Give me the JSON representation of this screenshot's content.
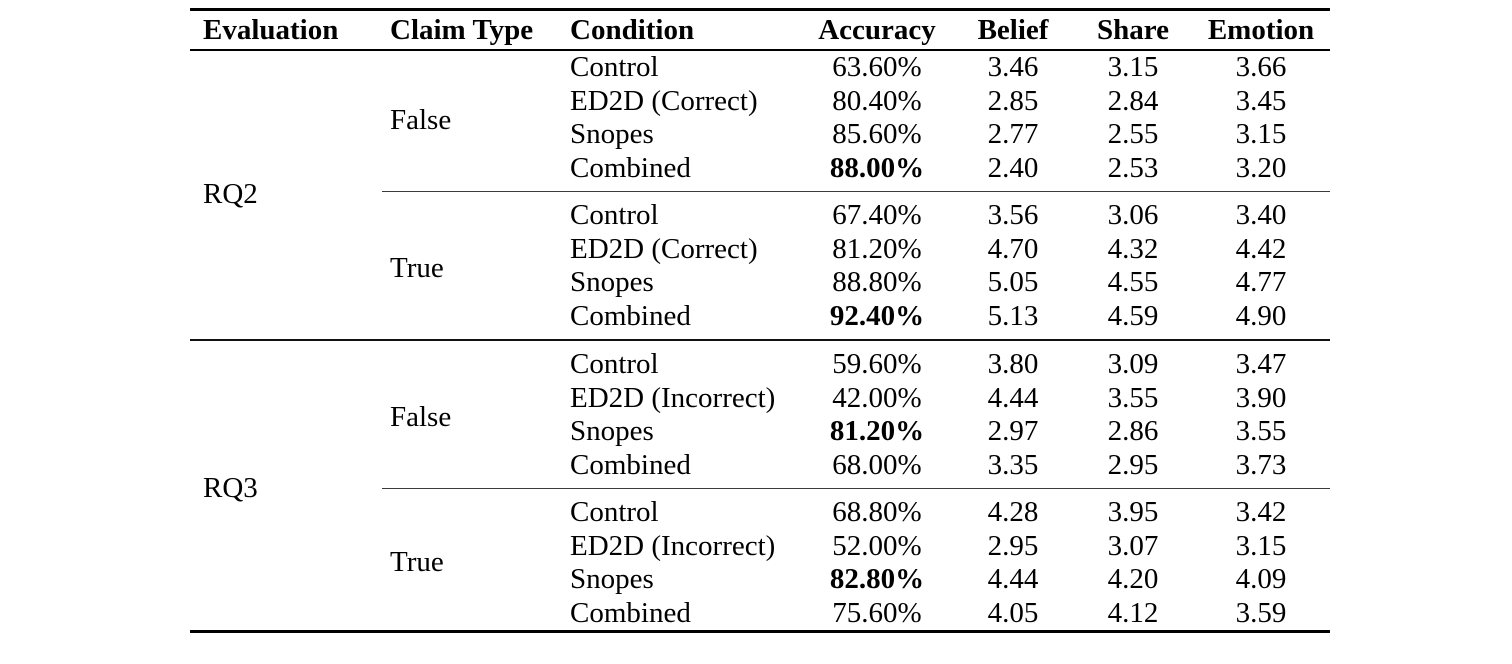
{
  "table": {
    "headers": {
      "evaluation": "Evaluation",
      "claim_type": "Claim Type",
      "condition": "Condition",
      "accuracy": "Accuracy",
      "belief": "Belief",
      "share": "Share",
      "emotion": "Emotion"
    },
    "groups": [
      {
        "evaluation": "RQ2",
        "claims": [
          {
            "claim_type": "False",
            "rows": [
              {
                "condition": "Control",
                "accuracy": "63.60%",
                "accuracy_bold": false,
                "belief": "3.46",
                "share": "3.15",
                "emotion": "3.66"
              },
              {
                "condition": "ED2D (Correct)",
                "accuracy": "80.40%",
                "accuracy_bold": false,
                "belief": "2.85",
                "share": "2.84",
                "emotion": "3.45"
              },
              {
                "condition": "Snopes",
                "accuracy": "85.60%",
                "accuracy_bold": false,
                "belief": "2.77",
                "share": "2.55",
                "emotion": "3.15"
              },
              {
                "condition": "Combined",
                "accuracy": "88.00%",
                "accuracy_bold": true,
                "belief": "2.40",
                "share": "2.53",
                "emotion": "3.20"
              }
            ]
          },
          {
            "claim_type": "True",
            "rows": [
              {
                "condition": "Control",
                "accuracy": "67.40%",
                "accuracy_bold": false,
                "belief": "3.56",
                "share": "3.06",
                "emotion": "3.40"
              },
              {
                "condition": "ED2D (Correct)",
                "accuracy": "81.20%",
                "accuracy_bold": false,
                "belief": "4.70",
                "share": "4.32",
                "emotion": "4.42"
              },
              {
                "condition": "Snopes",
                "accuracy": "88.80%",
                "accuracy_bold": false,
                "belief": "5.05",
                "share": "4.55",
                "emotion": "4.77"
              },
              {
                "condition": "Combined",
                "accuracy": "92.40%",
                "accuracy_bold": true,
                "belief": "5.13",
                "share": "4.59",
                "emotion": "4.90"
              }
            ]
          }
        ]
      },
      {
        "evaluation": "RQ3",
        "claims": [
          {
            "claim_type": "False",
            "rows": [
              {
                "condition": "Control",
                "accuracy": "59.60%",
                "accuracy_bold": false,
                "belief": "3.80",
                "share": "3.09",
                "emotion": "3.47"
              },
              {
                "condition": "ED2D (Incorrect)",
                "accuracy": "42.00%",
                "accuracy_bold": false,
                "belief": "4.44",
                "share": "3.55",
                "emotion": "3.90"
              },
              {
                "condition": "Snopes",
                "accuracy": "81.20%",
                "accuracy_bold": true,
                "belief": "2.97",
                "share": "2.86",
                "emotion": "3.55"
              },
              {
                "condition": "Combined",
                "accuracy": "68.00%",
                "accuracy_bold": false,
                "belief": "3.35",
                "share": "2.95",
                "emotion": "3.73"
              }
            ]
          },
          {
            "claim_type": "True",
            "rows": [
              {
                "condition": "Control",
                "accuracy": "68.80%",
                "accuracy_bold": false,
                "belief": "4.28",
                "share": "3.95",
                "emotion": "3.42"
              },
              {
                "condition": "ED2D (Incorrect)",
                "accuracy": "52.00%",
                "accuracy_bold": false,
                "belief": "2.95",
                "share": "3.07",
                "emotion": "3.15"
              },
              {
                "condition": "Snopes",
                "accuracy": "82.80%",
                "accuracy_bold": true,
                "belief": "4.44",
                "share": "4.20",
                "emotion": "4.09"
              },
              {
                "condition": "Combined",
                "accuracy": "75.60%",
                "accuracy_bold": false,
                "belief": "4.05",
                "share": "4.12",
                "emotion": "3.59"
              }
            ]
          }
        ]
      }
    ]
  }
}
